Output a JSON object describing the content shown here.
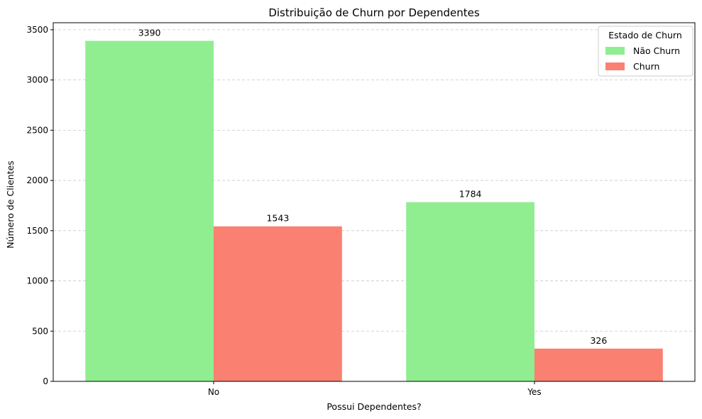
{
  "chart_data": {
    "type": "bar",
    "title": "Distribuição de Churn por Dependentes",
    "xlabel": "Possui Dependentes?",
    "ylabel": "Número de Clientes",
    "categories": [
      "No",
      "Yes"
    ],
    "series": [
      {
        "name": "Não Churn",
        "values": [
          3390,
          1784
        ],
        "color": "#90ee90"
      },
      {
        "name": "Churn",
        "values": [
          1543,
          326
        ],
        "color": "#fa8072"
      }
    ],
    "ylim": [
      0,
      3570
    ],
    "yticks": [
      0,
      500,
      1000,
      1500,
      2000,
      2500,
      3000,
      3500
    ],
    "grid": "y-dashed",
    "legend": {
      "title": "Estado de Churn",
      "placement": "top-right"
    },
    "data_labels": true
  }
}
